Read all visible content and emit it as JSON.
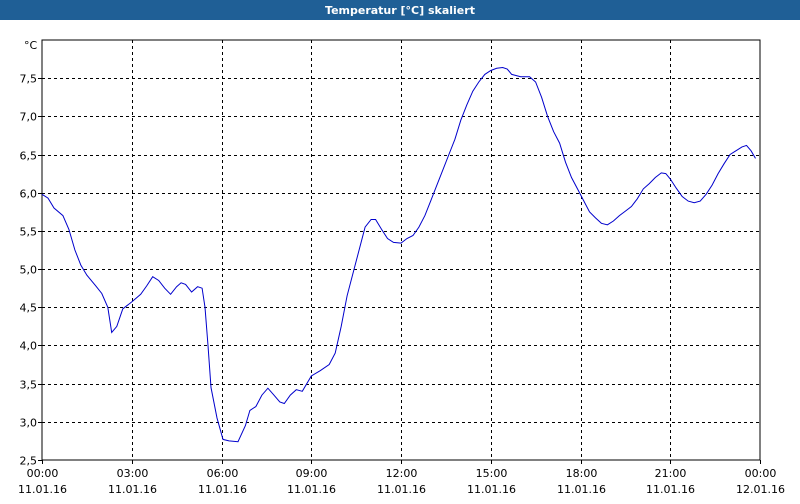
{
  "window": {
    "title": "Temperatur [°C] skaliert"
  },
  "colors": {
    "titlebar": "#1f5f96",
    "line": "#0000cc",
    "grid": "#000000"
  },
  "chart_data": {
    "type": "line",
    "title": "Temperatur [°C] skaliert",
    "ylabel": "°C",
    "xlabel": "",
    "ylim": [
      2.5,
      8.0
    ],
    "xlim": [
      0,
      24
    ],
    "grid": true,
    "yticks": [
      {
        "value": 2.5,
        "label": "2,5"
      },
      {
        "value": 3.0,
        "label": "3,0"
      },
      {
        "value": 3.5,
        "label": "3,5"
      },
      {
        "value": 4.0,
        "label": "4,0"
      },
      {
        "value": 4.5,
        "label": "4,5"
      },
      {
        "value": 5.0,
        "label": "5,0"
      },
      {
        "value": 5.5,
        "label": "5,5"
      },
      {
        "value": 6.0,
        "label": "6,0"
      },
      {
        "value": 6.5,
        "label": "6,5"
      },
      {
        "value": 7.0,
        "label": "7,0"
      },
      {
        "value": 7.5,
        "label": "7,5"
      }
    ],
    "xticks": [
      {
        "value": 0,
        "time": "00:00",
        "date": "11.01.16"
      },
      {
        "value": 3,
        "time": "03:00",
        "date": "11.01.16"
      },
      {
        "value": 6,
        "time": "06:00",
        "date": "11.01.16"
      },
      {
        "value": 9,
        "time": "09:00",
        "date": "11.01.16"
      },
      {
        "value": 12,
        "time": "12:00",
        "date": "11.01.16"
      },
      {
        "value": 15,
        "time": "15:00",
        "date": "11.01.16"
      },
      {
        "value": 18,
        "time": "18:00",
        "date": "11.01.16"
      },
      {
        "value": 21,
        "time": "21:00",
        "date": "11.01.16"
      },
      {
        "value": 24,
        "time": "00:00",
        "date": "12.01.16"
      }
    ],
    "series": [
      {
        "values": [
          [
            0.0,
            5.98
          ],
          [
            0.2,
            5.93
          ],
          [
            0.4,
            5.8
          ],
          [
            0.7,
            5.7
          ],
          [
            0.9,
            5.52
          ],
          [
            1.1,
            5.25
          ],
          [
            1.3,
            5.05
          ],
          [
            1.5,
            4.92
          ],
          [
            1.8,
            4.78
          ],
          [
            2.0,
            4.68
          ],
          [
            2.2,
            4.5
          ],
          [
            2.33,
            4.17
          ],
          [
            2.5,
            4.25
          ],
          [
            2.7,
            4.48
          ],
          [
            3.0,
            4.57
          ],
          [
            3.3,
            4.67
          ],
          [
            3.5,
            4.78
          ],
          [
            3.7,
            4.9
          ],
          [
            3.9,
            4.85
          ],
          [
            4.1,
            4.75
          ],
          [
            4.3,
            4.67
          ],
          [
            4.5,
            4.77
          ],
          [
            4.65,
            4.82
          ],
          [
            4.8,
            4.8
          ],
          [
            5.0,
            4.7
          ],
          [
            5.2,
            4.77
          ],
          [
            5.35,
            4.75
          ],
          [
            5.45,
            4.5
          ],
          [
            5.55,
            4.0
          ],
          [
            5.65,
            3.45
          ],
          [
            5.85,
            3.05
          ],
          [
            6.05,
            2.77
          ],
          [
            6.25,
            2.75
          ],
          [
            6.55,
            2.74
          ],
          [
            6.8,
            2.95
          ],
          [
            6.95,
            3.15
          ],
          [
            7.15,
            3.2
          ],
          [
            7.35,
            3.35
          ],
          [
            7.55,
            3.44
          ],
          [
            7.75,
            3.35
          ],
          [
            7.95,
            3.26
          ],
          [
            8.1,
            3.24
          ],
          [
            8.3,
            3.35
          ],
          [
            8.5,
            3.42
          ],
          [
            8.7,
            3.4
          ],
          [
            9.0,
            3.6
          ],
          [
            9.3,
            3.67
          ],
          [
            9.6,
            3.75
          ],
          [
            9.8,
            3.9
          ],
          [
            10.0,
            4.25
          ],
          [
            10.2,
            4.65
          ],
          [
            10.4,
            4.95
          ],
          [
            10.6,
            5.25
          ],
          [
            10.8,
            5.55
          ],
          [
            11.0,
            5.65
          ],
          [
            11.15,
            5.65
          ],
          [
            11.35,
            5.52
          ],
          [
            11.55,
            5.4
          ],
          [
            11.75,
            5.35
          ],
          [
            12.0,
            5.34
          ],
          [
            12.2,
            5.4
          ],
          [
            12.4,
            5.44
          ],
          [
            12.6,
            5.55
          ],
          [
            12.8,
            5.7
          ],
          [
            13.0,
            5.9
          ],
          [
            13.2,
            6.1
          ],
          [
            13.4,
            6.3
          ],
          [
            13.6,
            6.5
          ],
          [
            13.8,
            6.7
          ],
          [
            14.0,
            6.95
          ],
          [
            14.2,
            7.15
          ],
          [
            14.4,
            7.33
          ],
          [
            14.6,
            7.45
          ],
          [
            14.8,
            7.55
          ],
          [
            15.0,
            7.6
          ],
          [
            15.2,
            7.63
          ],
          [
            15.4,
            7.64
          ],
          [
            15.55,
            7.62
          ],
          [
            15.7,
            7.55
          ],
          [
            16.0,
            7.52
          ],
          [
            16.3,
            7.52
          ],
          [
            16.5,
            7.45
          ],
          [
            16.7,
            7.25
          ],
          [
            16.9,
            7.0
          ],
          [
            17.1,
            6.8
          ],
          [
            17.3,
            6.65
          ],
          [
            17.5,
            6.4
          ],
          [
            17.7,
            6.2
          ],
          [
            17.9,
            6.05
          ],
          [
            18.1,
            5.9
          ],
          [
            18.3,
            5.75
          ],
          [
            18.5,
            5.67
          ],
          [
            18.7,
            5.6
          ],
          [
            18.9,
            5.58
          ],
          [
            19.1,
            5.63
          ],
          [
            19.3,
            5.7
          ],
          [
            19.5,
            5.76
          ],
          [
            19.7,
            5.82
          ],
          [
            19.9,
            5.92
          ],
          [
            20.1,
            6.05
          ],
          [
            20.3,
            6.12
          ],
          [
            20.5,
            6.2
          ],
          [
            20.7,
            6.26
          ],
          [
            20.85,
            6.25
          ],
          [
            21.0,
            6.18
          ],
          [
            21.2,
            6.06
          ],
          [
            21.4,
            5.95
          ],
          [
            21.6,
            5.89
          ],
          [
            21.8,
            5.87
          ],
          [
            22.0,
            5.89
          ],
          [
            22.2,
            5.98
          ],
          [
            22.4,
            6.1
          ],
          [
            22.6,
            6.25
          ],
          [
            22.8,
            6.38
          ],
          [
            23.0,
            6.5
          ],
          [
            23.2,
            6.55
          ],
          [
            23.4,
            6.6
          ],
          [
            23.55,
            6.62
          ],
          [
            23.7,
            6.55
          ],
          [
            23.85,
            6.45
          ]
        ]
      }
    ]
  }
}
